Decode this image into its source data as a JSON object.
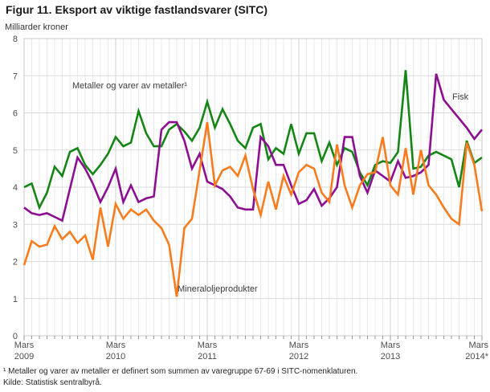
{
  "figure": {
    "title": "Figur 11. Eksport av viktige fastlandsvarer (SITC)",
    "y_axis_title": "Milliarder kroner",
    "footnote": "¹ Metaller og varer av metaller er definert som summen av varegruppe 67-69 i SITC-nomenklaturen.",
    "source": "Kilde: Statistisk sentralbyrå."
  },
  "colors": {
    "metals": "#158515",
    "fish": "#8d0f91",
    "mineral_oil": "#f87c1e",
    "grid_major_h": "#d9d9d9",
    "grid_minor_v": "#e9e9e9",
    "grid_year_v": "#d2d2d2",
    "plot_border": "#c8c8c8",
    "tick": "#9b9b9b",
    "axis_text": "#4d4d4d"
  },
  "chart_data": {
    "type": "line",
    "title": "Figur 11. Eksport av viktige fastlandsvarer (SITC)",
    "xlabel": "",
    "ylabel": "Milliarder kroner",
    "ylim": [
      0,
      8
    ],
    "yticks": [
      0,
      1,
      2,
      3,
      4,
      5,
      6,
      7,
      8
    ],
    "grid": "horizontal major on, vertical monthly minor on, darker vertical at March each year",
    "legend_position": "inline labels next to lines",
    "x_unit": "month",
    "x_range_note": "monthly values March 2009 - March 2014, 61 points per series",
    "xticks": [
      {
        "line1": "Mars",
        "line2": "2009",
        "month_index": 0
      },
      {
        "line1": "Mars",
        "line2": "2010",
        "month_index": 12
      },
      {
        "line1": "Mars",
        "line2": "2011",
        "month_index": 24
      },
      {
        "line1": "Mars",
        "line2": "2012",
        "month_index": 36
      },
      {
        "line1": "Mars",
        "line2": "2013",
        "month_index": 48
      },
      {
        "line1": "Mars",
        "line2": "2014*",
        "month_index": 60
      }
    ],
    "series": [
      {
        "name": "metals",
        "label": "Metaller og varer av metaller¹",
        "color": "#158515",
        "values": [
          4.0,
          4.1,
          3.45,
          3.85,
          4.55,
          4.3,
          4.95,
          5.05,
          4.6,
          4.35,
          4.6,
          4.9,
          5.35,
          5.1,
          5.2,
          6.05,
          5.45,
          5.1,
          5.1,
          5.55,
          5.7,
          5.5,
          5.25,
          5.6,
          6.3,
          5.6,
          6.1,
          5.7,
          5.25,
          5.05,
          5.6,
          5.7,
          4.75,
          5.05,
          4.9,
          5.7,
          4.9,
          5.45,
          5.45,
          4.7,
          5.2,
          4.6,
          5.05,
          4.95,
          4.4,
          4.05,
          4.6,
          4.7,
          4.65,
          4.95,
          7.15,
          4.5,
          4.55,
          4.85,
          4.95,
          4.85,
          4.75,
          4.0,
          5.25,
          4.65,
          4.8
        ]
      },
      {
        "name": "fish",
        "label": "Fisk",
        "color": "#8d0f91",
        "values": [
          3.45,
          3.3,
          3.25,
          3.3,
          3.2,
          3.1,
          3.95,
          4.8,
          4.5,
          4.1,
          3.6,
          4.0,
          4.5,
          3.6,
          4.05,
          3.6,
          3.7,
          3.75,
          5.55,
          5.75,
          5.75,
          5.25,
          4.5,
          4.9,
          4.15,
          4.05,
          3.95,
          3.75,
          3.45,
          3.4,
          3.4,
          5.35,
          5.1,
          4.6,
          4.6,
          4.05,
          3.55,
          3.65,
          3.95,
          3.5,
          3.7,
          4.0,
          5.35,
          5.35,
          4.3,
          3.85,
          4.45,
          4.3,
          4.15,
          4.7,
          4.25,
          4.3,
          4.4,
          4.6,
          7.05,
          6.35,
          6.1,
          5.85,
          5.6,
          5.3,
          5.55
        ]
      },
      {
        "name": "mineral_oil",
        "label": "Mineraloljeprodukter",
        "color": "#f87c1e",
        "values": [
          1.9,
          2.55,
          2.4,
          2.45,
          2.95,
          2.6,
          2.8,
          2.5,
          2.7,
          2.05,
          3.45,
          2.4,
          3.55,
          3.15,
          3.4,
          3.25,
          3.4,
          3.1,
          2.9,
          2.45,
          1.05,
          2.9,
          3.15,
          4.45,
          5.75,
          4.05,
          4.45,
          4.55,
          4.3,
          4.85,
          3.95,
          3.25,
          4.15,
          3.4,
          4.3,
          3.8,
          4.4,
          4.6,
          4.5,
          3.85,
          3.6,
          5.15,
          4.05,
          3.45,
          4.05,
          4.35,
          4.4,
          5.35,
          4.05,
          3.8,
          5.05,
          3.8,
          5.0,
          4.05,
          3.8,
          3.45,
          3.15,
          3.0,
          5.2,
          4.6,
          3.35
        ]
      }
    ]
  }
}
